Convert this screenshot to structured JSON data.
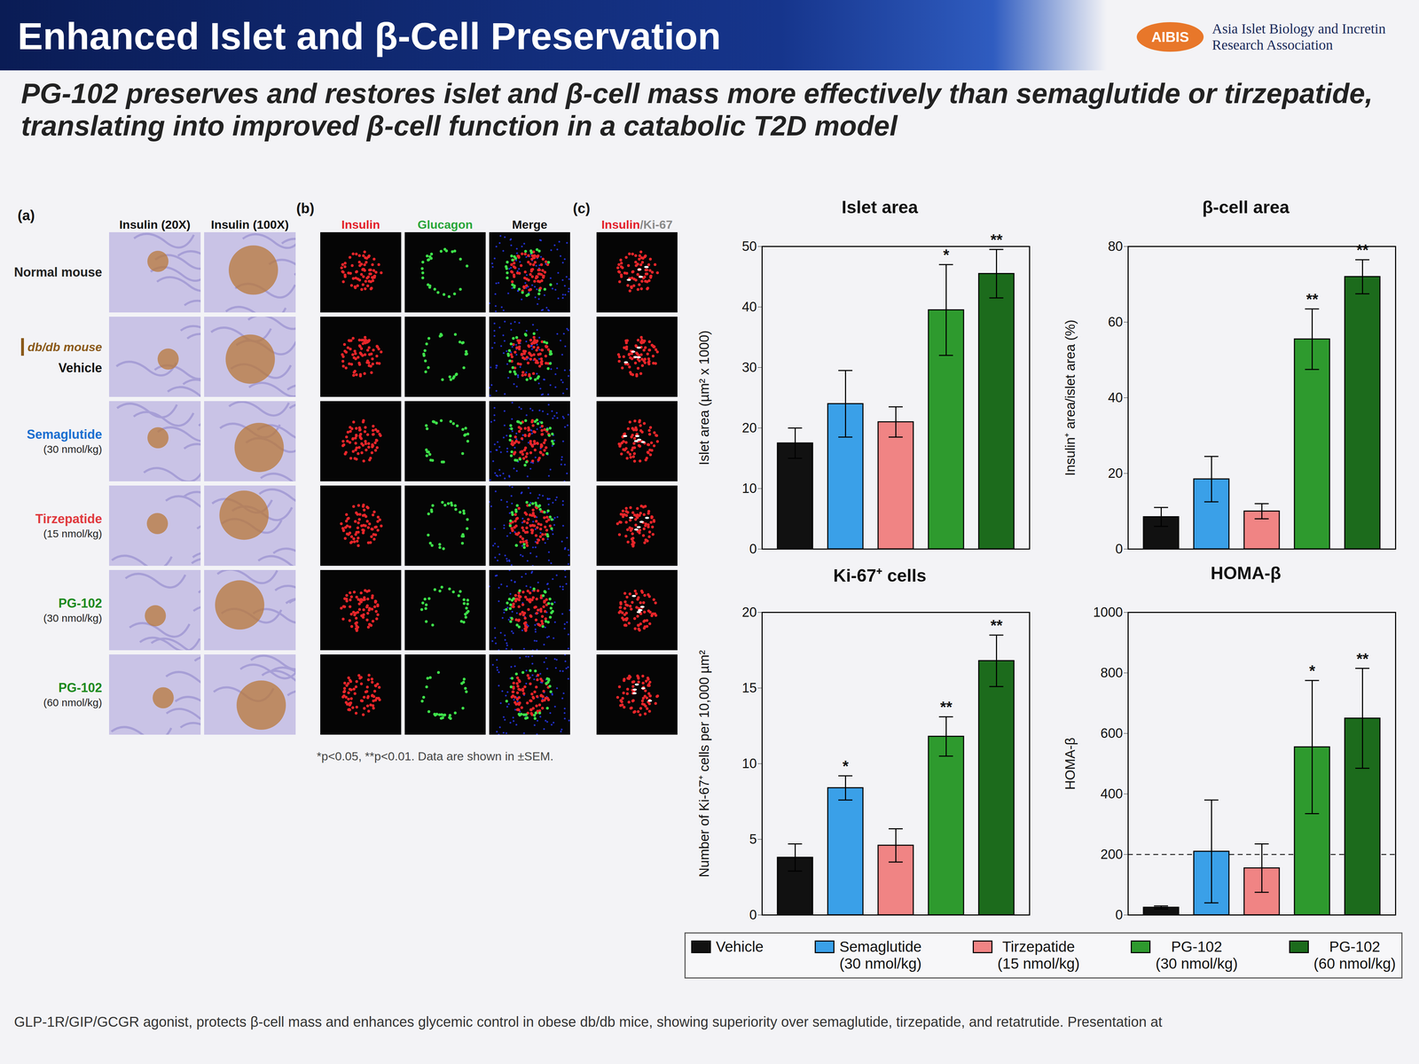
{
  "slide": {
    "title": "Enhanced Islet and β-Cell Preservation",
    "subtitle": "PG-102 preserves and restores islet and β-cell mass more effectively than semaglutide or tirzepatide, translating into improved β-cell function in a catabolic T2D model",
    "logo": {
      "acronym": "AIBIS",
      "name": "Asia Islet Biology and Incretin Research Association"
    },
    "figure": {
      "panel_a": {
        "letter": "(a)",
        "columns": [
          "Insulin (20X)",
          "Insulin (100X)"
        ]
      },
      "panel_b": {
        "letter": "(b)",
        "columns": [
          {
            "text": "Insulin",
            "color": "#e3202a"
          },
          {
            "text": "Glucagon",
            "color": "#2aa63a"
          },
          {
            "text": "Merge",
            "color": "#111111"
          }
        ]
      },
      "panel_c": {
        "letter": "(c)",
        "columns": [
          [
            {
              "text": "Insulin",
              "color": "#e3202a"
            },
            {
              "text": "/Ki-67",
              "color": "#8a8a8a"
            }
          ]
        ]
      },
      "rows": [
        {
          "label": "Normal mouse",
          "color": "#222222"
        },
        {
          "group": "db/db mouse",
          "label": "Vehicle",
          "color": "#111111"
        },
        {
          "label": "Semaglutide",
          "dose": "(30 nmol/kg)",
          "color": "#1b6fd0"
        },
        {
          "label": "Tirzepatide",
          "dose": "(15 nmol/kg)",
          "color": "#e0393e"
        },
        {
          "label": "PG-102",
          "dose": "(30 nmol/kg)",
          "color": "#1e8a1e"
        },
        {
          "label": "PG-102",
          "dose": "(60 nmol/kg)",
          "color": "#1e8a1e"
        }
      ]
    },
    "footnote": "*p<0.05, **p<0.01. Data are shown in ±SEM.",
    "caption": "GLP-1R/GIP/GCGR agonist, protects β-cell mass and enhances glycemic control in obese db/db mice, showing superiority over semaglutide, tirzepatide, and retatrutide. Presentation at"
  },
  "chart_data": [
    {
      "type": "bar",
      "title": "Islet area",
      "y_label": "Islet area (µm² x 1000)",
      "categories": [
        "Vehicle",
        "Semaglutide (30 nmol/kg)",
        "Tirzepatide (15 nmol/kg)",
        "PG-102 (30 nmol/kg)",
        "PG-102 (60 nmol/kg)"
      ],
      "values": [
        17.5,
        24,
        21,
        39.5,
        45.5
      ],
      "errors": [
        2.5,
        5.5,
        2.5,
        7.5,
        4
      ],
      "significance": [
        null,
        null,
        null,
        "*",
        "**"
      ],
      "colors": [
        "#111111",
        "#3aa0e8",
        "#f08484",
        "#2e9a2e",
        "#1c6b1c"
      ],
      "ylim": [
        0,
        50
      ],
      "yticks": [
        0,
        10,
        20,
        30,
        40,
        50
      ],
      "tick_labels": "y",
      "legend": "bottom"
    },
    {
      "type": "bar",
      "title": "β-cell area",
      "y_label": "Insulin⁺ area/islet area (%)",
      "categories": [
        "Vehicle",
        "Semaglutide (30 nmol/kg)",
        "Tirzepatide (15 nmol/kg)",
        "PG-102 (30 nmol/kg)",
        "PG-102 (60 nmol/kg)"
      ],
      "values": [
        8.5,
        18.5,
        10,
        55.5,
        72
      ],
      "errors": [
        2.5,
        6,
        2,
        8,
        4.5
      ],
      "significance": [
        null,
        null,
        null,
        "**",
        "**"
      ],
      "colors": [
        "#111111",
        "#3aa0e8",
        "#f08484",
        "#2e9a2e",
        "#1c6b1c"
      ],
      "ylim": [
        0,
        80
      ],
      "yticks": [
        0,
        20,
        40,
        60,
        80
      ],
      "tick_labels": "y"
    },
    {
      "type": "bar",
      "title": "Ki-67⁺ cells",
      "y_label": "Number of Ki-67⁺ cells per 10,000 µm²",
      "categories": [
        "Vehicle",
        "Semaglutide (30 nmol/kg)",
        "Tirzepatide (15 nmol/kg)",
        "PG-102 (30 nmol/kg)",
        "PG-102 (60 nmol/kg)"
      ],
      "values": [
        3.8,
        8.4,
        4.6,
        11.8,
        16.8
      ],
      "errors": [
        0.9,
        0.8,
        1.1,
        1.3,
        1.7
      ],
      "significance": [
        null,
        "*",
        null,
        "**",
        "**"
      ],
      "colors": [
        "#111111",
        "#3aa0e8",
        "#f08484",
        "#2e9a2e",
        "#1c6b1c"
      ],
      "ylim": [
        0,
        20
      ],
      "yticks": [
        0,
        5,
        10,
        15,
        20
      ],
      "tick_labels": "y"
    },
    {
      "type": "bar",
      "title": "HOMA-β",
      "y_label": "HOMA-β",
      "categories": [
        "Vehicle",
        "Semaglutide (30 nmol/kg)",
        "Tirzepatide (15 nmol/kg)",
        "PG-102 (30 nmol/kg)",
        "PG-102 (60 nmol/kg)"
      ],
      "values": [
        25,
        210,
        155,
        555,
        650
      ],
      "errors": [
        5,
        170,
        80,
        220,
        165
      ],
      "significance": [
        null,
        null,
        null,
        "*",
        "**"
      ],
      "colors": [
        "#111111",
        "#3aa0e8",
        "#f08484",
        "#2e9a2e",
        "#1c6b1c"
      ],
      "ylim": [
        0,
        1000
      ],
      "yticks": [
        0,
        200,
        400,
        600,
        800,
        1000
      ],
      "reference_line": {
        "value": 200,
        "line_style": "dashed"
      },
      "tick_labels": "y"
    }
  ]
}
